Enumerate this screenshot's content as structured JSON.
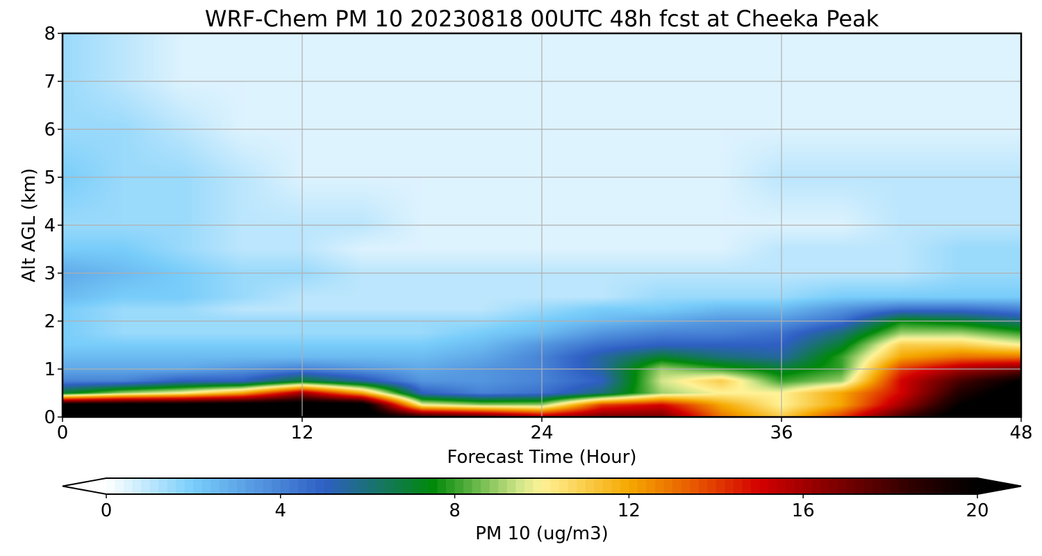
{
  "chart_data": {
    "type": "heatmap",
    "title": "WRF-Chem PM 10  20230818 00UTC 48h fcst at Cheeka Peak",
    "xlabel": "Forecast Time (Hour)",
    "ylabel": "Alt AGL (km)",
    "xlim": [
      0,
      48
    ],
    "ylim": [
      0,
      8
    ],
    "xticks": [
      0,
      12,
      24,
      36,
      48
    ],
    "yticks": [
      0,
      1,
      2,
      3,
      4,
      5,
      6,
      7,
      8
    ],
    "grid": true,
    "x_hours": [
      0,
      3,
      6,
      9,
      12,
      15,
      18,
      21,
      24,
      27,
      30,
      33,
      36,
      39,
      42,
      45,
      48
    ],
    "y_km": [
      0,
      0.25,
      0.5,
      0.75,
      1,
      1.25,
      1.5,
      1.75,
      2,
      2.25,
      2.5,
      3,
      3.5,
      4,
      5,
      6,
      7,
      8
    ],
    "z_ugm3": [
      [
        21,
        21,
        21,
        21,
        21,
        21,
        19,
        18,
        16,
        17,
        17,
        13,
        11,
        14,
        18,
        21,
        21
      ],
      [
        21,
        21,
        21,
        21,
        21,
        21,
        10,
        9,
        9,
        14,
        15,
        12,
        10,
        12,
        16,
        20,
        21
      ],
      [
        7,
        9,
        10,
        12,
        16,
        12,
        5,
        4,
        4.5,
        6,
        9,
        10,
        10,
        12,
        15,
        19,
        21
      ],
      [
        4,
        4,
        5,
        5,
        7,
        5.5,
        3.5,
        3.5,
        4,
        5,
        9.5,
        11,
        8,
        9,
        15,
        18,
        20
      ],
      [
        3,
        3,
        3,
        3.5,
        4,
        3.5,
        3,
        3.5,
        4,
        5.5,
        9,
        8,
        7,
        8,
        14,
        16,
        17
      ],
      [
        2.5,
        2.5,
        2.5,
        2.5,
        2.5,
        2.5,
        2.5,
        3,
        4,
        5.5,
        7,
        6,
        5.5,
        8,
        12,
        13,
        13
      ],
      [
        2,
        2,
        2,
        2,
        2,
        2,
        2,
        2.5,
        3.5,
        4.5,
        5,
        5,
        5,
        7,
        11,
        11,
        10
      ],
      [
        2,
        1.5,
        1.5,
        1.5,
        1.5,
        1.5,
        1.5,
        2,
        2.5,
        3.5,
        4,
        4,
        4.5,
        6,
        9,
        9,
        8
      ],
      [
        2,
        1.5,
        1.5,
        1.5,
        1.5,
        1.5,
        1.5,
        1.5,
        2,
        2.5,
        3,
        3.5,
        3.5,
        4.5,
        7.5,
        7,
        6
      ],
      [
        2,
        1.5,
        1.5,
        1,
        1,
        1,
        1,
        1,
        1.5,
        2,
        2,
        2.5,
        2.5,
        3.5,
        4.5,
        4.5,
        4
      ],
      [
        2.5,
        2,
        2,
        1.5,
        1,
        1,
        1,
        1,
        1,
        1,
        1.5,
        1.5,
        1.5,
        2,
        2,
        2,
        2
      ],
      [
        3,
        2.5,
        2,
        1.5,
        1.5,
        1,
        1,
        1,
        1,
        1,
        1,
        1,
        1,
        1,
        1,
        1.5,
        1.5
      ],
      [
        2,
        2,
        1.5,
        1,
        1,
        0.5,
        0.5,
        0.5,
        0.5,
        0.5,
        0.5,
        0.5,
        1,
        1,
        1,
        1.5,
        1.5
      ],
      [
        1.5,
        1.5,
        1.5,
        1,
        1,
        1,
        0.5,
        0.5,
        0.5,
        0.5,
        0.5,
        0.5,
        0.5,
        0.5,
        1,
        1,
        1
      ],
      [
        2,
        1.5,
        1.5,
        1,
        0.5,
        0.5,
        0.5,
        0.5,
        0.5,
        0.5,
        0.5,
        0.5,
        1,
        1,
        1,
        1,
        1
      ],
      [
        1.5,
        1.5,
        1,
        0.5,
        0.5,
        0.5,
        0.5,
        0.5,
        0.5,
        0.5,
        0.5,
        0.5,
        0.5,
        0.5,
        0.5,
        0.5,
        0.5
      ],
      [
        1.5,
        1,
        0.5,
        0.5,
        0.5,
        0.5,
        0.5,
        0.5,
        0.5,
        0.5,
        0.5,
        0.5,
        0.5,
        0.5,
        0.5,
        0.5,
        0.5
      ],
      [
        1.5,
        1,
        0.5,
        0.5,
        0.5,
        0.5,
        0.5,
        0.5,
        0.5,
        0.5,
        0.5,
        0.5,
        0.5,
        0.5,
        0.5,
        0.5,
        0.5
      ]
    ],
    "colorbar": {
      "label": "PM 10  (ug/m3)",
      "min": 0,
      "max": 20,
      "ticks": [
        0,
        4,
        8,
        12,
        16,
        20
      ],
      "extend": "both",
      "stops": [
        {
          "v": 0,
          "c": "#ffffff"
        },
        {
          "v": 2,
          "c": "#78cdfa"
        },
        {
          "v": 5,
          "c": "#2f5fc4"
        },
        {
          "v": 7.5,
          "c": "#00890a"
        },
        {
          "v": 9.5,
          "c": "#d2e68a"
        },
        {
          "v": 10,
          "c": "#fff296"
        },
        {
          "v": 12,
          "c": "#f5a800"
        },
        {
          "v": 13.5,
          "c": "#e85800"
        },
        {
          "v": 15,
          "c": "#d40000"
        },
        {
          "v": 16.5,
          "c": "#8a0000"
        },
        {
          "v": 18.5,
          "c": "#2e0000"
        },
        {
          "v": 20,
          "c": "#000000"
        }
      ]
    }
  }
}
